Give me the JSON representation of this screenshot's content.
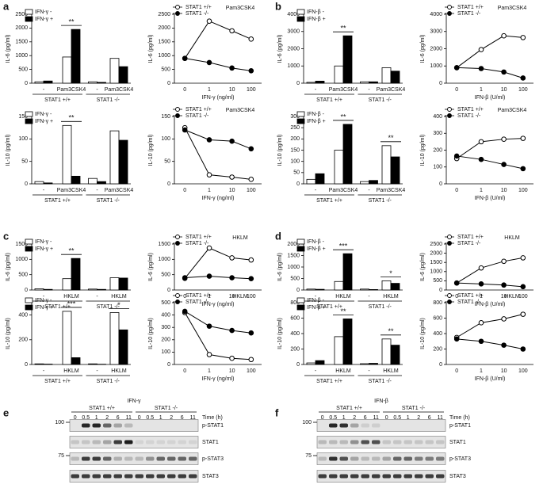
{
  "panel_labels": [
    "a",
    "b",
    "c",
    "d",
    "e",
    "f"
  ],
  "chart_data": [
    {
      "type": "bar",
      "ylabel": "IL-6 (pg/ml)",
      "categories": [
        "-",
        "Pam3CSK4",
        "-",
        "Pam3CSK4"
      ],
      "group_labels": [
        "STAT1 +/+",
        "STAT1 -/-"
      ],
      "series": [
        {
          "name": "IFN-γ -",
          "color": "#ffffff",
          "values": [
            50,
            950,
            50,
            900
          ]
        },
        {
          "name": "IFN-γ +",
          "color": "#000000",
          "values": [
            80,
            1950,
            30,
            600
          ]
        }
      ],
      "significance": [
        null,
        "**",
        null,
        null
      ],
      "ylim": [
        0,
        2500
      ],
      "yticks": [
        0,
        500,
        1000,
        1500,
        2000,
        2500
      ]
    },
    {
      "type": "line",
      "title": "Pam3CSK4",
      "ylabel": "IL-6 (pg/ml)",
      "xlabel": "IFN-γ (ng/ml)",
      "categories": [
        "0",
        "1",
        "10",
        "100"
      ],
      "series": [
        {
          "name": "STAT1 +/+",
          "color": "#ffffff",
          "values": [
            900,
            2250,
            1900,
            1600
          ]
        },
        {
          "name": "STAT1 -/-",
          "color": "#000000",
          "values": [
            900,
            750,
            550,
            450
          ]
        }
      ],
      "ylim": [
        0,
        2500
      ],
      "yticks": [
        0,
        500,
        1000,
        1500,
        2000,
        2500
      ]
    },
    {
      "type": "bar",
      "ylabel": "IL-10 (pg/ml)",
      "categories": [
        "-",
        "Pam3CSK4",
        "-",
        "Pam3CSK4"
      ],
      "group_labels": [
        "STAT1 +/+",
        "STAT1 -/-"
      ],
      "series": [
        {
          "name": "IFN-γ -",
          "color": "#ffffff",
          "values": [
            5,
            130,
            12,
            118
          ]
        },
        {
          "name": "IFN-γ +",
          "color": "#000000",
          "values": [
            2,
            17,
            5,
            97
          ]
        }
      ],
      "significance": [
        null,
        "**",
        null,
        null
      ],
      "ylim": [
        0,
        150
      ],
      "yticks": [
        0,
        50,
        100,
        150
      ]
    },
    {
      "type": "line",
      "title": "Pam3CSK4",
      "ylabel": "IL-10 (pg/ml)",
      "xlabel": "IFN-γ (ng/ml)",
      "categories": [
        "0",
        "1",
        "10",
        "100"
      ],
      "series": [
        {
          "name": "STAT1 +/+",
          "color": "#ffffff",
          "values": [
            125,
            20,
            15,
            10
          ]
        },
        {
          "name": "STAT1 -/-",
          "color": "#000000",
          "values": [
            120,
            98,
            95,
            78
          ]
        }
      ],
      "ylim": [
        0,
        150
      ],
      "yticks": [
        0,
        50,
        100,
        150
      ]
    },
    {
      "type": "bar",
      "ylabel": "IL-6 (pg/ml)",
      "categories": [
        "-",
        "Pam3CSK4",
        "-",
        "Pam3CSK4"
      ],
      "group_labels": [
        "STAT1 +/+",
        "STAT1 -/-"
      ],
      "series": [
        {
          "name": "IFN-β -",
          "color": "#ffffff",
          "values": [
            50,
            1000,
            80,
            900
          ]
        },
        {
          "name": "IFN-β +",
          "color": "#000000",
          "values": [
            120,
            2750,
            80,
            700
          ]
        }
      ],
      "significance": [
        null,
        "**",
        null,
        null
      ],
      "ylim": [
        0,
        4000
      ],
      "yticks": [
        0,
        1000,
        2000,
        3000,
        4000
      ]
    },
    {
      "type": "line",
      "title": "Pam3CSK4",
      "ylabel": "IL-6 (pg/ml)",
      "xlabel": "IFN-β (U/ml)",
      "categories": [
        "0",
        "1",
        "10",
        "100"
      ],
      "series": [
        {
          "name": "STAT1 +/+",
          "color": "#ffffff",
          "values": [
            900,
            1950,
            2750,
            2650
          ]
        },
        {
          "name": "STAT1 -/-",
          "color": "#000000",
          "values": [
            900,
            850,
            650,
            300
          ]
        }
      ],
      "ylim": [
        0,
        4000
      ],
      "yticks": [
        0,
        1000,
        2000,
        3000,
        4000
      ]
    },
    {
      "type": "bar",
      "ylabel": "IL-10 (pg/ml)",
      "categories": [
        "-",
        "Pam3CSK4",
        "-",
        "Pam3CSK4"
      ],
      "group_labels": [
        "STAT1 +/+",
        "STAT1 -/-"
      ],
      "series": [
        {
          "name": "IFN-β -",
          "color": "#ffffff",
          "values": [
            20,
            150,
            10,
            170
          ]
        },
        {
          "name": "IFN-β +",
          "color": "#000000",
          "values": [
            45,
            265,
            15,
            120
          ]
        }
      ],
      "significance": [
        null,
        "**",
        null,
        "**"
      ],
      "ylim": [
        0,
        300
      ],
      "yticks": [
        0,
        50,
        100,
        150,
        200,
        250,
        300
      ]
    },
    {
      "type": "line",
      "title": "Pam3CSK4",
      "ylabel": "IL-10 (pg/ml)",
      "xlabel": "IFN-β (U/ml)",
      "categories": [
        "0",
        "1",
        "10",
        "100"
      ],
      "series": [
        {
          "name": "STAT1 +/+",
          "color": "#ffffff",
          "values": [
            150,
            250,
            265,
            270
          ]
        },
        {
          "name": "STAT1 -/-",
          "color": "#000000",
          "values": [
            165,
            145,
            115,
            90
          ]
        }
      ],
      "ylim": [
        0,
        400
      ],
      "yticks": [
        0,
        100,
        200,
        300,
        400
      ]
    },
    {
      "type": "bar",
      "ylabel": "IL-6 (pg/ml)",
      "categories": [
        "-",
        "HKLM",
        "-",
        "HKLM"
      ],
      "group_labels": [
        "STAT1 +/+",
        "STAT1 -/-"
      ],
      "series": [
        {
          "name": "IFN-γ -",
          "color": "#ffffff",
          "values": [
            40,
            370,
            30,
            400
          ]
        },
        {
          "name": "IFN-γ +",
          "color": "#000000",
          "values": [
            20,
            1030,
            20,
            390
          ]
        }
      ],
      "significance": [
        null,
        "**",
        null,
        null
      ],
      "ylim": [
        0,
        1500
      ],
      "yticks": [
        0,
        500,
        1000,
        1500
      ]
    },
    {
      "type": "line",
      "title": "HKLM",
      "ylabel": "IL-6 (pg/ml)",
      "xlabel": "IFN-γ (ng/ml)",
      "categories": [
        "0",
        "1",
        "10",
        "100"
      ],
      "series": [
        {
          "name": "STAT1 +/+",
          "color": "#ffffff",
          "values": [
            380,
            1370,
            1050,
            980
          ]
        },
        {
          "name": "STAT1 -/-",
          "color": "#000000",
          "values": [
            400,
            450,
            400,
            370
          ]
        }
      ],
      "ylim": [
        0,
        1500
      ],
      "yticks": [
        0,
        500,
        1000,
        1500
      ]
    },
    {
      "type": "bar",
      "ylabel": "IL-10 (pg/ml)",
      "categories": [
        "-",
        "HKLM",
        "-",
        "HKLM"
      ],
      "group_labels": [
        "STAT1 +/+",
        "STAT1 -/-"
      ],
      "series": [
        {
          "name": "IFN-γ -",
          "color": "#ffffff",
          "values": [
            5,
            430,
            5,
            420
          ]
        },
        {
          "name": "IFN-γ +",
          "color": "#000000",
          "values": [
            3,
            55,
            2,
            280
          ]
        }
      ],
      "significance": [
        null,
        "***",
        null,
        "*"
      ],
      "ylim": [
        0,
        500
      ],
      "yticks": [
        0,
        200,
        400
      ]
    },
    {
      "type": "line",
      "title": "HKLM",
      "ylabel": "IL-10 (pg/ml)",
      "xlabel": "IFN-γ (ng/ml)",
      "categories": [
        "0",
        "1",
        "10",
        "100"
      ],
      "series": [
        {
          "name": "STAT1 +/+",
          "color": "#ffffff",
          "values": [
            420,
            80,
            50,
            40
          ]
        },
        {
          "name": "STAT1 -/-",
          "color": "#000000",
          "values": [
            430,
            310,
            275,
            255
          ]
        }
      ],
      "ylim": [
        0,
        500
      ],
      "yticks": [
        0,
        100,
        200,
        300,
        400,
        500
      ]
    },
    {
      "type": "bar",
      "ylabel": "IL-6 (pg/ml)",
      "categories": [
        "-",
        "HKLM",
        "-",
        "HKLM"
      ],
      "group_labels": [
        "STAT1 +/+",
        "STAT1 -/-"
      ],
      "series": [
        {
          "name": "IFN-β -",
          "color": "#ffffff",
          "values": [
            40,
            370,
            40,
            400
          ]
        },
        {
          "name": "IFN-β +",
          "color": "#000000",
          "values": [
            30,
            1580,
            20,
            290
          ]
        }
      ],
      "significance": [
        null,
        "***",
        null,
        "*"
      ],
      "ylim": [
        0,
        2000
      ],
      "yticks": [
        0,
        500,
        1000,
        1500,
        2000
      ]
    },
    {
      "type": "line",
      "title": "HKLM",
      "ylabel": "IL-6 (pg/ml)",
      "xlabel": "IFN-β (U/ml)",
      "categories": [
        "0",
        "1",
        "10",
        "100"
      ],
      "series": [
        {
          "name": "STAT1 +/+",
          "color": "#ffffff",
          "values": [
            380,
            1200,
            1560,
            1750
          ]
        },
        {
          "name": "STAT1 -/-",
          "color": "#000000",
          "values": [
            380,
            330,
            270,
            180
          ]
        }
      ],
      "ylim": [
        0,
        2500
      ],
      "yticks": [
        0,
        500,
        1000,
        1500,
        2000,
        2500
      ]
    },
    {
      "type": "bar",
      "ylabel": "IL-10 (pg/ml)",
      "categories": [
        "-",
        "HKLM",
        "-",
        "HKLM"
      ],
      "group_labels": [
        "STAT1 +/+",
        "STAT1 -/-"
      ],
      "series": [
        {
          "name": "IFN-β -",
          "color": "#ffffff",
          "values": [
            20,
            360,
            10,
            330
          ]
        },
        {
          "name": "IFN-β +",
          "color": "#000000",
          "values": [
            50,
            590,
            15,
            250
          ]
        }
      ],
      "significance": [
        null,
        "**",
        null,
        "**"
      ],
      "ylim": [
        0,
        800
      ],
      "yticks": [
        0,
        200,
        400,
        600,
        800
      ]
    },
    {
      "type": "line",
      "title": "HKLM",
      "ylabel": "IL-10 (pg/ml)",
      "xlabel": "IFN-β (U/ml)",
      "categories": [
        "0",
        "1",
        "10",
        "100"
      ],
      "series": [
        {
          "name": "STAT1 +/+",
          "color": "#ffffff",
          "values": [
            350,
            540,
            590,
            650
          ]
        },
        {
          "name": "STAT1 -/-",
          "color": "#000000",
          "values": [
            330,
            300,
            250,
            200
          ]
        }
      ],
      "ylim": [
        0,
        800
      ],
      "yticks": [
        0,
        200,
        400,
        600,
        800
      ]
    }
  ],
  "blots": [
    {
      "treatment": "IFN-γ",
      "groups": [
        "STAT1 +/+",
        "STAT1 -/-"
      ],
      "times": [
        0,
        0.5,
        1,
        2,
        6,
        11
      ],
      "time_label": "Time (h)",
      "markers": [
        100,
        75
      ],
      "rows": [
        "p-STAT1",
        "STAT1",
        "p-STAT3",
        "STAT3"
      ]
    },
    {
      "treatment": "IFN-β",
      "groups": [
        "STAT1 +/+",
        "STAT1 -/-"
      ],
      "times": [
        0,
        0.5,
        1,
        2,
        6,
        11
      ],
      "time_label": "Time (h)",
      "markers": [
        100,
        75
      ],
      "rows": [
        "p-STAT1",
        "STAT1",
        "p-STAT3",
        "STAT3"
      ]
    }
  ]
}
